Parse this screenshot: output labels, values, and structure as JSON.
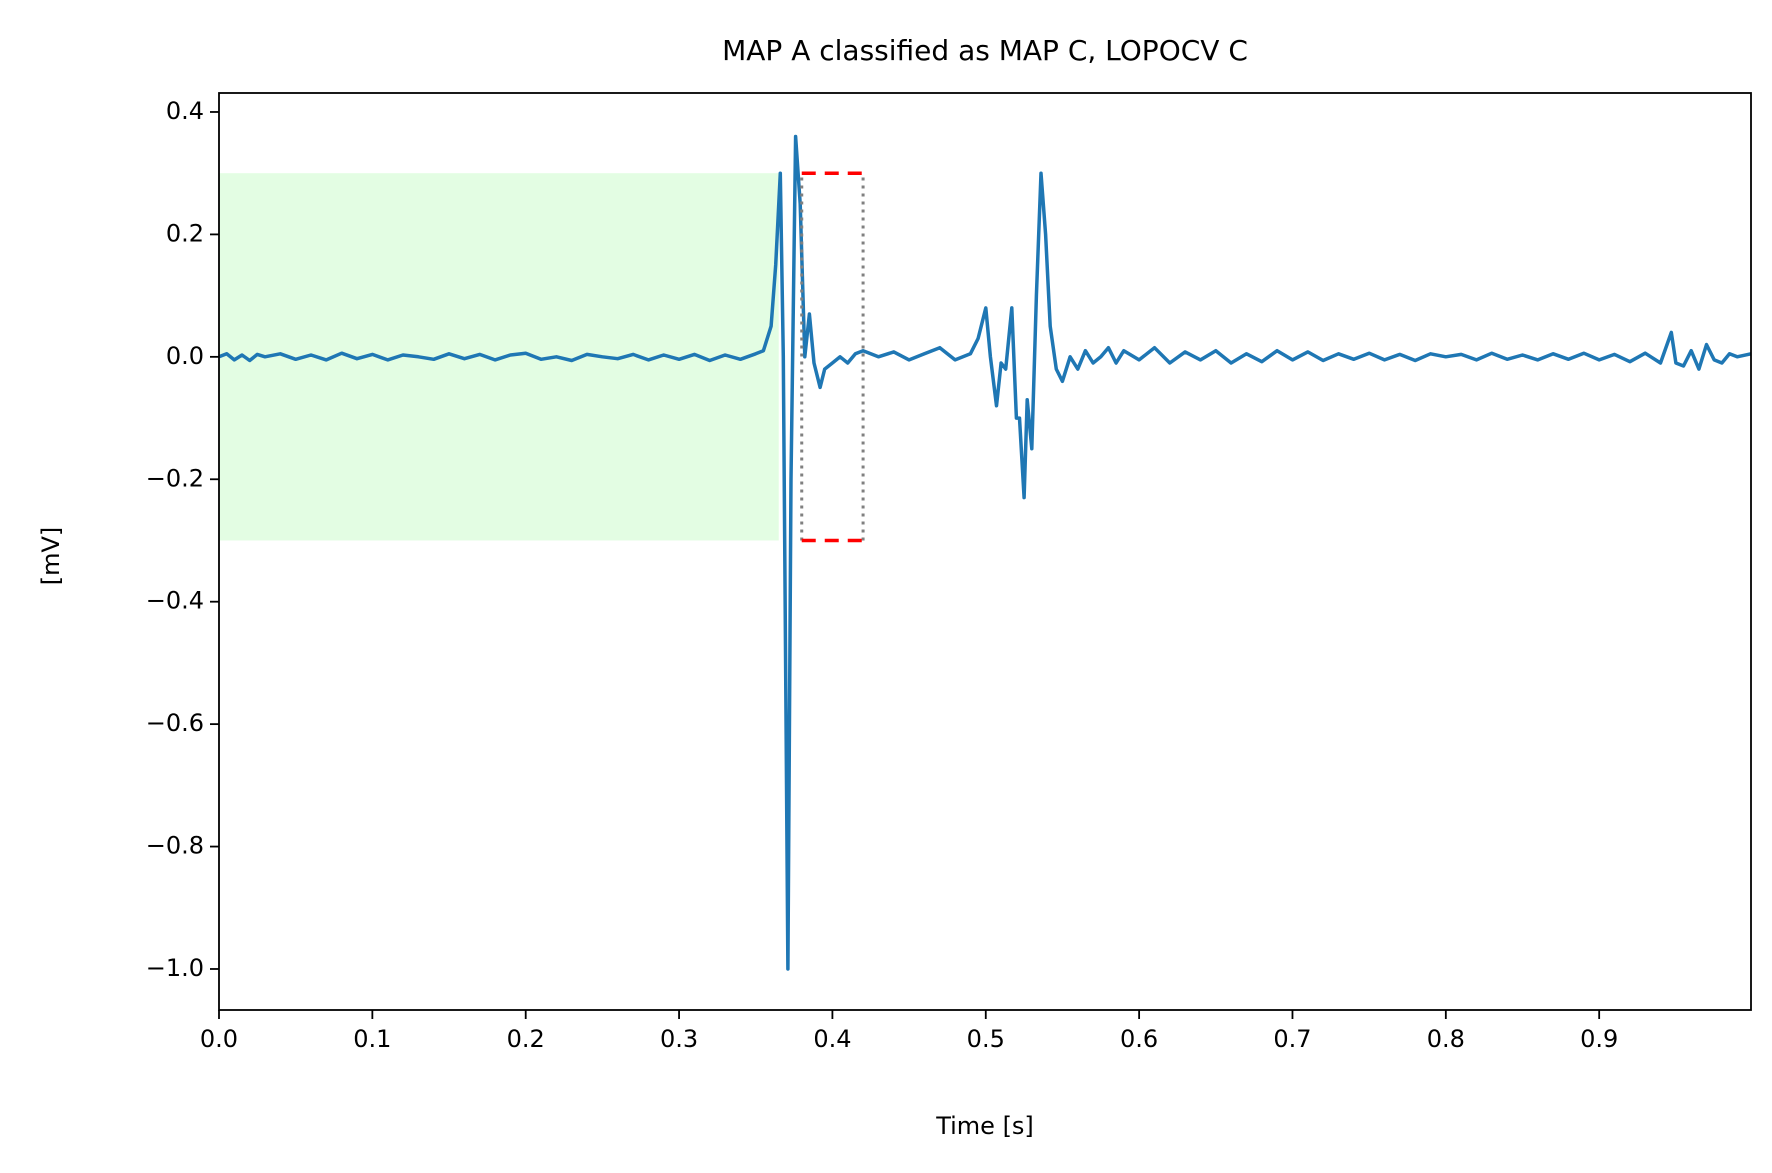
{
  "chart_data": {
    "type": "line",
    "title": "MAP A classified as MAP C, LOPOCV C",
    "x_label": "Time [s]",
    "y_label": "[mV]",
    "color": "#1f77b4",
    "x": [
      0,
      0.005,
      0.01,
      0.015,
      0.02,
      0.025,
      0.03,
      0.04,
      0.05,
      0.06,
      0.07,
      0.08,
      0.09,
      0.1,
      0.11,
      0.12,
      0.13,
      0.14,
      0.15,
      0.16,
      0.17,
      0.18,
      0.19,
      0.2,
      0.21,
      0.22,
      0.23,
      0.24,
      0.25,
      0.26,
      0.27,
      0.28,
      0.29,
      0.3,
      0.31,
      0.32,
      0.33,
      0.34,
      0.35,
      0.355,
      0.36,
      0.363,
      0.366,
      0.368,
      0.371,
      0.373,
      0.376,
      0.379,
      0.382,
      0.385,
      0.388,
      0.392,
      0.395,
      0.4,
      0.405,
      0.41,
      0.415,
      0.42,
      0.43,
      0.44,
      0.45,
      0.46,
      0.47,
      0.48,
      0.49,
      0.495,
      0.5,
      0.503,
      0.507,
      0.51,
      0.513,
      0.517,
      0.52,
      0.522,
      0.525,
      0.527,
      0.53,
      0.533,
      0.536,
      0.539,
      0.542,
      0.546,
      0.55,
      0.555,
      0.56,
      0.565,
      0.57,
      0.575,
      0.58,
      0.585,
      0.59,
      0.6,
      0.61,
      0.62,
      0.63,
      0.64,
      0.65,
      0.66,
      0.67,
      0.68,
      0.69,
      0.7,
      0.71,
      0.72,
      0.73,
      0.74,
      0.75,
      0.76,
      0.77,
      0.78,
      0.79,
      0.8,
      0.81,
      0.82,
      0.83,
      0.84,
      0.85,
      0.86,
      0.87,
      0.88,
      0.89,
      0.9,
      0.91,
      0.92,
      0.93,
      0.94,
      0.947,
      0.95,
      0.955,
      0.96,
      0.965,
      0.97,
      0.975,
      0.98,
      0.985,
      0.99,
      0.999
    ],
    "values": [
      0,
      0.005,
      -0.005,
      0.003,
      -0.006,
      0.004,
      0,
      0.005,
      -0.004,
      0.003,
      -0.005,
      0.006,
      -0.003,
      0.004,
      -0.005,
      0.003,
      0,
      -0.004,
      0.005,
      -0.003,
      0.004,
      -0.005,
      0.003,
      0.006,
      -0.004,
      0,
      -0.006,
      0.004,
      0,
      -0.003,
      0.004,
      -0.005,
      0.003,
      -0.004,
      0.004,
      -0.006,
      0.003,
      -0.004,
      0.005,
      0.01,
      0.05,
      0.15,
      0.3,
      0,
      -1.0,
      -0.2,
      0.36,
      0.25,
      0,
      0.07,
      -0.01,
      -0.05,
      -0.02,
      -0.01,
      0,
      -0.01,
      0.005,
      0.01,
      0,
      0.008,
      -0.005,
      0.005,
      0.015,
      -0.005,
      0.005,
      0.03,
      0.08,
      0,
      -0.08,
      -0.01,
      -0.02,
      0.08,
      -0.1,
      -0.1,
      -0.23,
      -0.07,
      -0.15,
      0.1,
      0.3,
      0.2,
      0.05,
      -0.02,
      -0.04,
      0,
      -0.02,
      0.01,
      -0.01,
      0,
      0.015,
      -0.01,
      0.01,
      -0.005,
      0.015,
      -0.01,
      0.008,
      -0.005,
      0.01,
      -0.01,
      0.005,
      -0.008,
      0.01,
      -0.005,
      0.008,
      -0.006,
      0.005,
      -0.004,
      0.006,
      -0.005,
      0.004,
      -0.006,
      0.005,
      0,
      0.004,
      -0.005,
      0.006,
      -0.004,
      0.003,
      -0.005,
      0.005,
      -0.004,
      0.006,
      -0.005,
      0.004,
      -0.008,
      0.006,
      -0.01,
      0.04,
      -0.01,
      -0.015,
      0.01,
      -0.02,
      0.02,
      -0.005,
      -0.01,
      0.005,
      0,
      0.005
    ],
    "shaded_region": {
      "x": [
        0,
        0.365
      ],
      "y": [
        -0.3,
        0.3
      ],
      "color": "#e3fde3"
    },
    "window": {
      "x": [
        0.38,
        0.42
      ],
      "y": [
        -0.3,
        0.3
      ],
      "bound_color": "#ff0000",
      "edge_color": "#808080"
    },
    "xlim": [
      0,
      0.999
    ],
    "ylim": [
      -1.067,
      0.431
    ],
    "xticks": [
      {
        "value": 0,
        "label": "0.0"
      },
      0.1,
      0.2,
      0.3,
      0.4,
      0.5,
      0.6,
      0.7,
      0.8,
      0.9
    ],
    "yticks": [
      0.4,
      0.2,
      {
        "value": 0,
        "label": "0.0"
      },
      {
        "value": -0.2,
        "label": "−0.2"
      },
      {
        "value": -0.4,
        "label": "−0.4"
      },
      {
        "value": -0.6,
        "label": "−0.6"
      },
      {
        "value": -0.8,
        "label": "−0.8"
      },
      {
        "value": -1.0,
        "label": "−1.0"
      }
    ]
  }
}
